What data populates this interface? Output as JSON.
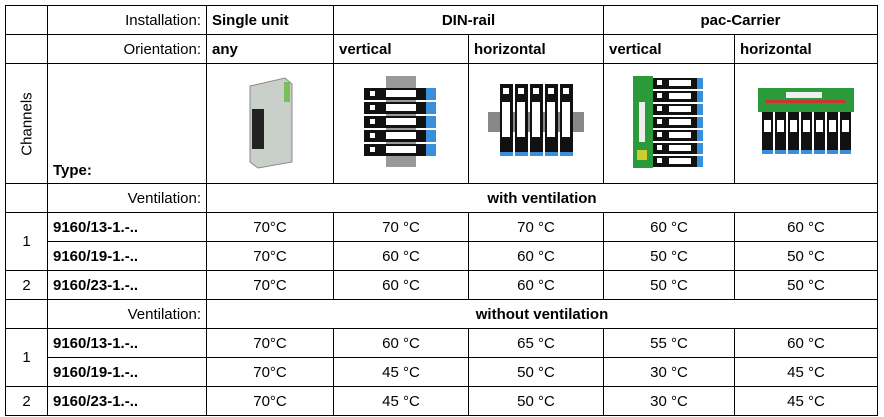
{
  "header": {
    "installation_label": "Installation:",
    "installations": [
      "Single unit",
      "DIN-rail",
      "pac-Carrier"
    ],
    "orientation_label": "Orientation:",
    "orientations": [
      "any",
      "vertical",
      "horizontal",
      "vertical",
      "horizontal"
    ],
    "channels_label": "Channels",
    "type_label": "Type:"
  },
  "sections": [
    {
      "ventilation_label": "Ventilation:",
      "ventilation": "with ventilation",
      "groups": [
        {
          "channels": "1",
          "rows": [
            {
              "type": "9160/13-1.-..",
              "temps": [
                "70°C",
                "70 °C",
                "70 °C",
                "60 °C",
                "60 °C"
              ]
            },
            {
              "type": "9160/19-1.-..",
              "temps": [
                "70°C",
                "60 °C",
                "60 °C",
                "50 °C",
                "50 °C"
              ]
            }
          ]
        },
        {
          "channels": "2",
          "rows": [
            {
              "type": "9160/23-1.-..",
              "temps": [
                "70°C",
                "60 °C",
                "60 °C",
                "50 °C",
                "50 °C"
              ]
            }
          ]
        }
      ]
    },
    {
      "ventilation_label": "Ventilation:",
      "ventilation": "without ventilation",
      "groups": [
        {
          "channels": "1",
          "rows": [
            {
              "type": "9160/13-1.-..",
              "temps": [
                "70°C",
                "60 °C",
                "65 °C",
                "55 °C",
                "60 °C"
              ]
            },
            {
              "type": "9160/19-1.-..",
              "temps": [
                "70°C",
                "45 °C",
                "50 °C",
                "30 °C",
                "45 °C"
              ]
            }
          ]
        },
        {
          "channels": "2",
          "rows": [
            {
              "type": "9160/23-1.-..",
              "temps": [
                "70°C",
                "45 °C",
                "50 °C",
                "30 °C",
                "45 °C"
              ]
            }
          ]
        }
      ]
    }
  ]
}
